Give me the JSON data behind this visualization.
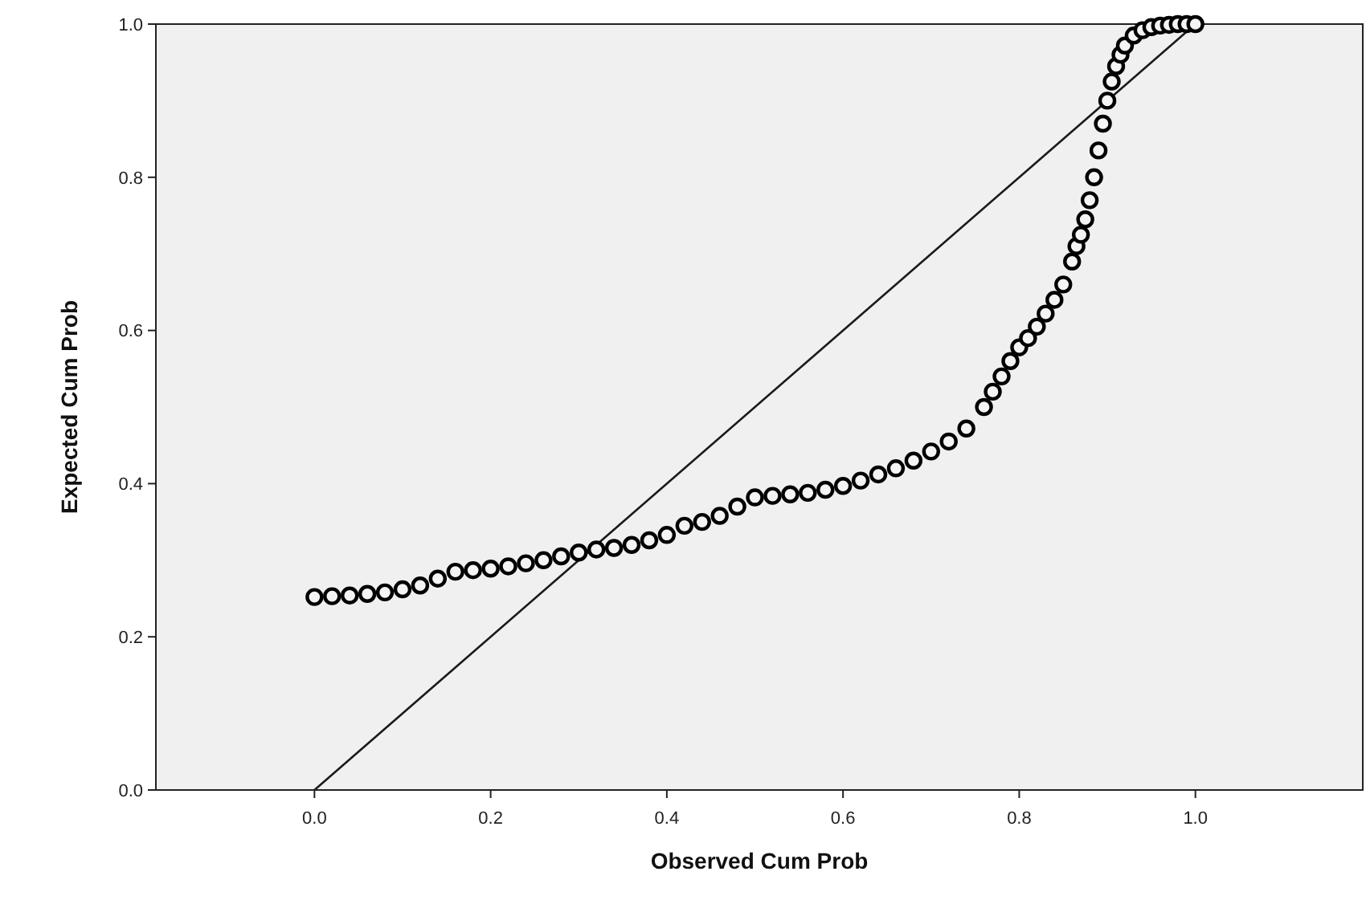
{
  "chart_data": {
    "type": "scatter",
    "xlabel": "Observed Cum Prob",
    "ylabel": "Expected Cum Prob",
    "xlim": [
      -0.18,
      1.19
    ],
    "ylim": [
      0,
      1
    ],
    "xticks": [
      {
        "value": 0,
        "label": "0.0"
      },
      0.2,
      0.4,
      0.6,
      0.8,
      {
        "value": 1,
        "label": "1.0"
      }
    ],
    "yticks": [
      {
        "value": 0,
        "label": "0.0"
      },
      0.2,
      0.4,
      0.6,
      0.8,
      {
        "value": 1,
        "label": "1.0"
      }
    ],
    "grid": false,
    "series": [
      {
        "type": "line",
        "color": "#1a1a1a",
        "marker": "none",
        "line_style": "solid",
        "x": [
          0,
          1
        ],
        "values": [
          0,
          1
        ]
      },
      {
        "color": "#000000",
        "marker": "circle",
        "x": [
          0,
          0.02,
          0.04,
          0.06,
          0.08,
          0.1,
          0.12,
          0.14,
          0.16,
          0.18,
          0.2,
          0.22,
          0.24,
          0.26,
          0.28,
          0.3,
          0.32,
          0.34,
          0.36,
          0.38,
          0.4,
          0.42,
          0.44,
          0.46,
          0.48,
          0.5,
          0.52,
          0.54,
          0.56,
          0.58,
          0.6,
          0.62,
          0.64,
          0.66,
          0.68,
          0.7,
          0.72,
          0.74,
          0.76,
          0.77,
          0.78,
          0.79,
          0.8,
          0.81,
          0.82,
          0.83,
          0.84,
          0.85,
          0.86,
          0.865,
          0.87,
          0.875,
          0.88,
          0.885,
          0.89,
          0.895,
          0.9,
          0.905,
          0.91,
          0.915,
          0.92,
          0.93,
          0.94,
          0.95,
          0.96,
          0.97,
          0.98,
          0.99,
          1
        ],
        "values": [
          0.252,
          0.253,
          0.254,
          0.256,
          0.258,
          0.262,
          0.267,
          0.276,
          0.285,
          0.287,
          0.289,
          0.292,
          0.296,
          0.3,
          0.305,
          0.31,
          0.314,
          0.316,
          0.32,
          0.326,
          0.333,
          0.345,
          0.35,
          0.358,
          0.37,
          0.382,
          0.384,
          0.386,
          0.388,
          0.392,
          0.397,
          0.404,
          0.412,
          0.42,
          0.43,
          0.442,
          0.455,
          0.472,
          0.5,
          0.52,
          0.54,
          0.56,
          0.578,
          0.59,
          0.605,
          0.622,
          0.64,
          0.66,
          0.69,
          0.71,
          0.725,
          0.745,
          0.77,
          0.8,
          0.835,
          0.87,
          0.9,
          0.925,
          0.945,
          0.96,
          0.972,
          0.985,
          0.992,
          0.996,
          0.998,
          0.999,
          1,
          1,
          1
        ]
      }
    ]
  }
}
